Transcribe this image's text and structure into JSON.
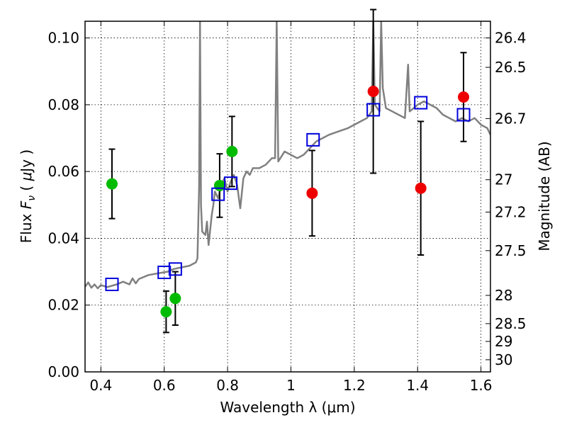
{
  "chart_data": {
    "type": "scatter",
    "xlabel": "Wavelength  λ (μm)",
    "ylabel_parts": [
      "Flux  ",
      "F",
      "ν",
      "  ( ",
      "μ",
      "Jy )"
    ],
    "ylabel_right": "Magnitude (AB)",
    "xlim": [
      0.35,
      1.63
    ],
    "ylim": [
      0.0,
      0.105
    ],
    "grid": true,
    "x_ticks": [
      0.4,
      0.6,
      0.8,
      1.0,
      1.2,
      1.4,
      1.6
    ],
    "x_tick_labels": [
      "0.4",
      "0.6",
      "0.8",
      "1",
      "1.2",
      "1.4",
      "1.6"
    ],
    "y_ticks": [
      0.0,
      0.02,
      0.04,
      0.06,
      0.08,
      0.1
    ],
    "y_tick_labels": [
      "0.00",
      "0.02",
      "0.04",
      "0.06",
      "0.08",
      "0.10"
    ],
    "mag_ticks": [
      26.4,
      26.5,
      26.7,
      27,
      27.2,
      27.5,
      28,
      28.5,
      29,
      30
    ],
    "mag_tick_labels": [
      "26.4",
      "26.5",
      "26.7",
      "27",
      "27.2",
      "27.5",
      "28",
      "28.5",
      "29",
      "30"
    ],
    "mag_zero_point_ab": 23.9,
    "series": [
      {
        "marker": "circle",
        "color": "#00bb00",
        "points": [
          {
            "x": 0.435,
            "y": 0.0563,
            "yerr": 0.0104
          },
          {
            "x": 0.606,
            "y": 0.018,
            "yerr": 0.0062
          },
          {
            "x": 0.635,
            "y": 0.022,
            "yerr": 0.008
          },
          {
            "x": 0.775,
            "y": 0.0558,
            "yerr": 0.0095
          },
          {
            "x": 0.814,
            "y": 0.066,
            "yerr": 0.0105
          }
        ]
      },
      {
        "marker": "circle",
        "color": "#ee0000",
        "points": [
          {
            "x": 1.067,
            "y": 0.0535,
            "yerr": 0.0128
          },
          {
            "x": 1.26,
            "y": 0.084,
            "yerr": 0.0245
          },
          {
            "x": 1.41,
            "y": 0.055,
            "yerr": 0.02
          },
          {
            "x": 1.545,
            "y": 0.0823,
            "yerr": 0.0133
          }
        ]
      },
      {
        "marker": "open-square",
        "color": "#0000dd",
        "points": [
          {
            "x": 0.435,
            "y": 0.0262
          },
          {
            "x": 0.6,
            "y": 0.0298
          },
          {
            "x": 0.635,
            "y": 0.0308
          },
          {
            "x": 0.77,
            "y": 0.0532
          },
          {
            "x": 0.81,
            "y": 0.0565
          },
          {
            "x": 1.07,
            "y": 0.0695
          },
          {
            "x": 1.26,
            "y": 0.0785
          },
          {
            "x": 1.41,
            "y": 0.0806
          },
          {
            "x": 1.545,
            "y": 0.077
          }
        ]
      },
      {
        "marker": "line",
        "color": "#808080",
        "points": [
          {
            "x": 0.35,
            "y": 0.0255
          },
          {
            "x": 0.36,
            "y": 0.0268
          },
          {
            "x": 0.37,
            "y": 0.0252
          },
          {
            "x": 0.38,
            "y": 0.0262
          },
          {
            "x": 0.39,
            "y": 0.025
          },
          {
            "x": 0.4,
            "y": 0.026
          },
          {
            "x": 0.42,
            "y": 0.0254
          },
          {
            "x": 0.45,
            "y": 0.0262
          },
          {
            "x": 0.47,
            "y": 0.027
          },
          {
            "x": 0.49,
            "y": 0.0262
          },
          {
            "x": 0.5,
            "y": 0.028
          },
          {
            "x": 0.51,
            "y": 0.0265
          },
          {
            "x": 0.52,
            "y": 0.0278
          },
          {
            "x": 0.55,
            "y": 0.029
          },
          {
            "x": 0.58,
            "y": 0.0295
          },
          {
            "x": 0.61,
            "y": 0.03
          },
          {
            "x": 0.63,
            "y": 0.0308
          },
          {
            "x": 0.65,
            "y": 0.0312
          },
          {
            "x": 0.68,
            "y": 0.0318
          },
          {
            "x": 0.7,
            "y": 0.0328
          },
          {
            "x": 0.705,
            "y": 0.034
          },
          {
            "x": 0.71,
            "y": 0.055
          },
          {
            "x": 0.713,
            "y": 0.105
          },
          {
            "x": 0.716,
            "y": 0.05
          },
          {
            "x": 0.72,
            "y": 0.042
          },
          {
            "x": 0.73,
            "y": 0.041
          },
          {
            "x": 0.735,
            "y": 0.045
          },
          {
            "x": 0.74,
            "y": 0.038
          },
          {
            "x": 0.75,
            "y": 0.047
          },
          {
            "x": 0.755,
            "y": 0.05
          },
          {
            "x": 0.76,
            "y": 0.054
          },
          {
            "x": 0.77,
            "y": 0.052
          },
          {
            "x": 0.78,
            "y": 0.056
          },
          {
            "x": 0.79,
            "y": 0.058
          },
          {
            "x": 0.8,
            "y": 0.054
          },
          {
            "x": 0.81,
            "y": 0.057
          },
          {
            "x": 0.82,
            "y": 0.059
          },
          {
            "x": 0.83,
            "y": 0.056
          },
          {
            "x": 0.84,
            "y": 0.049
          },
          {
            "x": 0.85,
            "y": 0.058
          },
          {
            "x": 0.86,
            "y": 0.06
          },
          {
            "x": 0.87,
            "y": 0.059
          },
          {
            "x": 0.88,
            "y": 0.061
          },
          {
            "x": 0.9,
            "y": 0.061
          },
          {
            "x": 0.92,
            "y": 0.062
          },
          {
            "x": 0.94,
            "y": 0.064
          },
          {
            "x": 0.95,
            "y": 0.064
          },
          {
            "x": 0.955,
            "y": 0.105
          },
          {
            "x": 0.96,
            "y": 0.063
          },
          {
            "x": 0.98,
            "y": 0.066
          },
          {
            "x": 1.0,
            "y": 0.065
          },
          {
            "x": 1.02,
            "y": 0.064
          },
          {
            "x": 1.04,
            "y": 0.065
          },
          {
            "x": 1.06,
            "y": 0.067
          },
          {
            "x": 1.08,
            "y": 0.069
          },
          {
            "x": 1.1,
            "y": 0.07
          },
          {
            "x": 1.12,
            "y": 0.071
          },
          {
            "x": 1.15,
            "y": 0.072
          },
          {
            "x": 1.18,
            "y": 0.073
          },
          {
            "x": 1.2,
            "y": 0.074
          },
          {
            "x": 1.22,
            "y": 0.075
          },
          {
            "x": 1.24,
            "y": 0.076
          },
          {
            "x": 1.255,
            "y": 0.078
          },
          {
            "x": 1.26,
            "y": 0.105
          },
          {
            "x": 1.265,
            "y": 0.08
          },
          {
            "x": 1.28,
            "y": 0.078
          },
          {
            "x": 1.285,
            "y": 0.105
          },
          {
            "x": 1.29,
            "y": 0.085
          },
          {
            "x": 1.3,
            "y": 0.079
          },
          {
            "x": 1.32,
            "y": 0.078
          },
          {
            "x": 1.34,
            "y": 0.077
          },
          {
            "x": 1.36,
            "y": 0.076
          },
          {
            "x": 1.37,
            "y": 0.092
          },
          {
            "x": 1.375,
            "y": 0.078
          },
          {
            "x": 1.4,
            "y": 0.08
          },
          {
            "x": 1.42,
            "y": 0.081
          },
          {
            "x": 1.44,
            "y": 0.08
          },
          {
            "x": 1.46,
            "y": 0.079
          },
          {
            "x": 1.48,
            "y": 0.077
          },
          {
            "x": 1.5,
            "y": 0.076
          },
          {
            "x": 1.52,
            "y": 0.075
          },
          {
            "x": 1.54,
            "y": 0.076
          },
          {
            "x": 1.56,
            "y": 0.075
          },
          {
            "x": 1.58,
            "y": 0.076
          },
          {
            "x": 1.6,
            "y": 0.074
          },
          {
            "x": 1.62,
            "y": 0.073
          },
          {
            "x": 1.63,
            "y": 0.071
          }
        ]
      }
    ]
  }
}
